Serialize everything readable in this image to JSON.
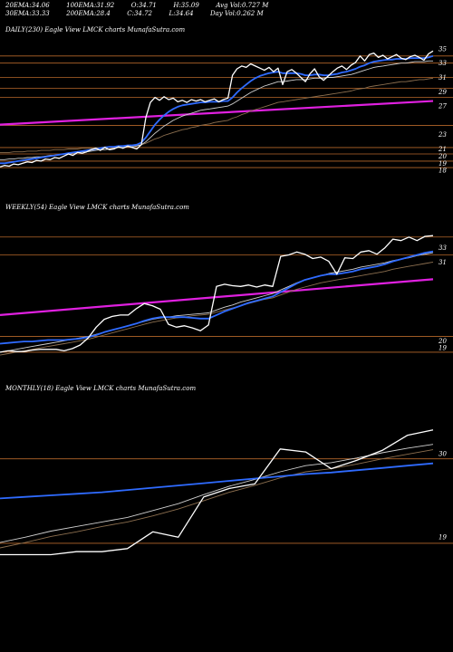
{
  "header": {
    "row1": [
      {
        "label": "20EMA:",
        "value": "34.06"
      },
      {
        "label": "100EMA:",
        "value": "31.92"
      },
      {
        "label": "O:",
        "value": "34.71"
      },
      {
        "label": "H:",
        "value": "35.09"
      },
      {
        "label": "Avg Vol:",
        "value": "0.727  M"
      }
    ],
    "row2": [
      {
        "label": "30EMA:",
        "value": "33.33"
      },
      {
        "label": "200EMA:",
        "value": "28.4"
      },
      {
        "label": "C:",
        "value": "34.72"
      },
      {
        "label": "L:",
        "value": "34.64"
      },
      {
        "label": "Day Vol:",
        "value": "0.262  M"
      }
    ]
  },
  "colors": {
    "background": "#000000",
    "price": "#ffffff",
    "ema_fast": "#2f6bff",
    "ema_slow": "#cfcfcf",
    "ema_long": "#8c6f4f",
    "trend": "#e020e0",
    "level": "#b5672a"
  },
  "chart_data": [
    {
      "type": "line",
      "title": "DAILY(230) Eagle   View  LMCK charts MunafaSutra.com",
      "ylim": [
        16,
        36
      ],
      "y_ticks": [
        {
          "label": "35",
          "value": 35
        },
        {
          "label": "33",
          "value": 33
        },
        {
          "label": "31",
          "value": 31
        },
        {
          "label": "29",
          "value": 29
        },
        {
          "label": "27",
          "value": 27
        },
        {
          "label": "23",
          "value": 23
        },
        {
          "label": "21",
          "value": 21
        },
        {
          "label": "20",
          "value": 20
        },
        {
          "label": "19",
          "value": 19
        },
        {
          "label": "18",
          "value": 18
        }
      ],
      "levels": [
        34.0,
        33.0,
        31.0,
        29.5,
        28.2,
        24.3,
        21.2,
        20.3,
        19.3,
        18.4
      ],
      "trend": [
        [
          0,
          24.4
        ],
        [
          1,
          27.7
        ]
      ],
      "series": [
        {
          "role": "price",
          "values": [
            18.5,
            18.7,
            18.6,
            18.9,
            18.8,
            19.0,
            19.2,
            19.1,
            19.4,
            19.3,
            19.6,
            19.5,
            19.8,
            19.7,
            20.0,
            20.3,
            20.1,
            20.5,
            20.4,
            20.6,
            20.9,
            21.1,
            20.8,
            21.2,
            20.9,
            21.0,
            21.3,
            21.1,
            21.4,
            21.2,
            21.0,
            21.6,
            25.4,
            27.5,
            28.2,
            27.8,
            28.3,
            27.9,
            28.1,
            27.6,
            27.8,
            27.5,
            27.9,
            27.7,
            27.9,
            27.6,
            27.8,
            28.0,
            27.6,
            27.9,
            28.1,
            31.3,
            32.2,
            32.6,
            32.4,
            32.9,
            32.6,
            32.3,
            32.0,
            32.4,
            31.8,
            32.3,
            30.0,
            31.8,
            32.1,
            31.6,
            31.0,
            30.4,
            31.5,
            32.2,
            31.1,
            30.6,
            31.2,
            31.8,
            32.3,
            32.6,
            32.1,
            32.7,
            33.1,
            34.0,
            33.3,
            34.2,
            34.4,
            33.8,
            34.1,
            33.6,
            33.9,
            34.2,
            33.7,
            33.5,
            33.9,
            34.1,
            33.8,
            33.4,
            34.3,
            34.7
          ]
        },
        {
          "role": "ema_fast",
          "values": [
            19.0,
            19.0,
            19.1,
            19.2,
            19.3,
            19.4,
            19.5,
            19.6,
            19.7,
            19.8,
            19.9,
            20.0,
            20.1,
            20.2,
            20.3,
            20.4,
            20.5,
            20.6,
            20.7,
            20.8,
            20.9,
            21.0,
            21.1,
            21.2,
            21.3,
            21.3,
            21.4,
            21.4,
            21.5,
            21.5,
            21.6,
            21.9,
            22.6,
            23.5,
            24.4,
            25.1,
            25.7,
            26.2,
            26.6,
            26.9,
            27.1,
            27.2,
            27.3,
            27.4,
            27.5,
            27.5,
            27.6,
            27.6,
            27.6,
            27.7,
            27.7,
            28.2,
            28.9,
            29.5,
            30.0,
            30.5,
            30.9,
            31.2,
            31.4,
            31.6,
            31.7,
            31.8,
            31.6,
            31.6,
            31.6,
            31.6,
            31.5,
            31.3,
            31.3,
            31.4,
            31.4,
            31.3,
            31.3,
            31.4,
            31.5,
            31.7,
            31.8,
            32.0,
            32.2,
            32.5,
            32.7,
            33.0,
            33.2,
            33.3,
            33.4,
            33.5,
            33.5,
            33.6,
            33.6,
            33.6,
            33.7,
            33.7,
            33.7,
            33.7,
            33.8,
            34.0
          ]
        },
        {
          "role": "ema_slow",
          "values": [
            19.5,
            19.5,
            19.6,
            19.6,
            19.7,
            19.7,
            19.8,
            19.8,
            19.9,
            19.9,
            20.0,
            20.1,
            20.1,
            20.2,
            20.3,
            20.3,
            20.4,
            20.5,
            20.6,
            20.6,
            20.7,
            20.8,
            20.9,
            20.9,
            21.0,
            21.1,
            21.2,
            21.2,
            21.3,
            21.3,
            21.4,
            21.6,
            22.0,
            22.6,
            23.2,
            23.7,
            24.2,
            24.6,
            25.0,
            25.3,
            25.6,
            25.8,
            26.0,
            26.2,
            26.4,
            26.5,
            26.6,
            26.7,
            26.8,
            26.9,
            27.0,
            27.3,
            27.7,
            28.1,
            28.5,
            28.9,
            29.2,
            29.5,
            29.8,
            30.0,
            30.2,
            30.4,
            30.4,
            30.5,
            30.6,
            30.7,
            30.7,
            30.7,
            30.8,
            30.9,
            30.9,
            30.9,
            31.0,
            31.0,
            31.1,
            31.2,
            31.3,
            31.4,
            31.6,
            31.8,
            32.0,
            32.2,
            32.4,
            32.5,
            32.6,
            32.7,
            32.8,
            32.9,
            33.0,
            33.0,
            33.1,
            33.2,
            33.2,
            33.2,
            33.3,
            33.3
          ]
        },
        {
          "role": "ema_long",
          "values": [
            20.5,
            20.5,
            20.5,
            20.6,
            20.6,
            20.6,
            20.7,
            20.7,
            20.7,
            20.8,
            20.8,
            20.8,
            20.9,
            20.9,
            20.9,
            21.0,
            21.0,
            21.0,
            21.1,
            21.1,
            21.1,
            21.2,
            21.2,
            21.3,
            21.3,
            21.3,
            21.4,
            21.4,
            21.5,
            21.5,
            21.5,
            21.6,
            21.8,
            22.1,
            22.4,
            22.6,
            22.9,
            23.1,
            23.3,
            23.5,
            23.7,
            23.8,
            24.0,
            24.1,
            24.3,
            24.4,
            24.5,
            24.7,
            24.8,
            24.9,
            25.0,
            25.3,
            25.5,
            25.8,
            26.0,
            26.3,
            26.5,
            26.7,
            26.9,
            27.1,
            27.3,
            27.5,
            27.6,
            27.7,
            27.8,
            27.9,
            28.0,
            28.1,
            28.2,
            28.3,
            28.4,
            28.5,
            28.6,
            28.7,
            28.8,
            28.9,
            29.0,
            29.1,
            29.3,
            29.4,
            29.5,
            29.7,
            29.8,
            29.9,
            30.0,
            30.1,
            30.2,
            30.3,
            30.4,
            30.4,
            30.5,
            30.6,
            30.7,
            30.7,
            30.8,
            30.9
          ]
        }
      ]
    },
    {
      "type": "line",
      "title": "WEEKLY(54) Eagle   View  LMCK charts MunafaSutra.com",
      "ylim": [
        17,
        37
      ],
      "y_ticks": [
        {
          "label": "33",
          "value": 33
        },
        {
          "label": "31",
          "value": 31
        },
        {
          "label": "20",
          "value": 20
        },
        {
          "label": "19",
          "value": 19
        }
      ],
      "levels": [
        34.5,
        32.0,
        20.6,
        18.4
      ],
      "trend": [
        [
          0,
          23.6
        ],
        [
          1,
          28.6
        ]
      ],
      "series": [
        {
          "role": "price",
          "values": [
            18.4,
            18.6,
            18.5,
            18.5,
            18.7,
            18.8,
            18.8,
            18.8,
            18.6,
            18.9,
            19.4,
            20.4,
            21.9,
            23.0,
            23.4,
            23.6,
            23.6,
            24.5,
            25.2,
            24.9,
            24.4,
            22.3,
            21.9,
            22.1,
            21.8,
            21.4,
            22.2,
            27.6,
            27.9,
            27.7,
            27.6,
            27.8,
            27.5,
            27.8,
            27.6,
            31.8,
            32.0,
            32.4,
            32.1,
            31.5,
            31.7,
            31.1,
            29.3,
            31.6,
            31.5,
            32.4,
            32.6,
            32.1,
            33.0,
            34.2,
            34.0,
            34.5,
            34.0,
            34.6,
            34.7
          ]
        },
        {
          "role": "ema_fast",
          "values": [
            19.6,
            19.7,
            19.8,
            19.9,
            19.9,
            20.0,
            20.1,
            20.1,
            20.1,
            20.2,
            20.3,
            20.5,
            20.8,
            21.2,
            21.5,
            21.8,
            22.1,
            22.4,
            22.8,
            23.1,
            23.3,
            23.3,
            23.3,
            23.3,
            23.2,
            23.1,
            23.1,
            23.6,
            24.1,
            24.5,
            24.9,
            25.3,
            25.6,
            25.9,
            26.2,
            26.8,
            27.4,
            28.0,
            28.5,
            28.8,
            29.1,
            29.3,
            29.3,
            29.5,
            29.7,
            30.0,
            30.2,
            30.4,
            30.7,
            31.1,
            31.4,
            31.7,
            32.0,
            32.3,
            32.5
          ]
        },
        {
          "role": "ema_slow",
          "values": [
            18.4,
            18.6,
            18.8,
            19.0,
            19.2,
            19.4,
            19.6,
            19.8,
            20.0,
            20.2,
            20.4,
            20.6,
            20.9,
            21.2,
            21.5,
            21.8,
            22.1,
            22.4,
            22.7,
            23.0,
            23.2,
            23.3,
            23.5,
            23.6,
            23.7,
            23.8,
            23.9,
            24.3,
            24.7,
            25.0,
            25.4,
            25.7,
            26.0,
            26.3,
            26.6,
            27.1,
            27.6,
            28.1,
            28.5,
            28.8,
            29.1,
            29.4,
            29.6,
            29.8,
            30.0,
            30.3,
            30.5,
            30.7,
            30.9,
            31.2,
            31.4,
            31.6,
            31.9,
            32.1,
            32.3
          ]
        },
        {
          "role": "ema_long",
          "values": [
            18.0,
            18.2,
            18.4,
            18.6,
            18.8,
            19.0,
            19.2,
            19.4,
            19.6,
            19.8,
            20.0,
            20.2,
            20.5,
            20.8,
            21.1,
            21.4,
            21.7,
            22.0,
            22.3,
            22.6,
            22.8,
            23.0,
            23.2,
            23.3,
            23.5,
            23.6,
            23.7,
            24.0,
            24.3,
            24.6,
            24.9,
            25.2,
            25.5,
            25.8,
            26.0,
            26.4,
            26.8,
            27.2,
            27.5,
            27.8,
            28.1,
            28.3,
            28.5,
            28.7,
            28.9,
            29.1,
            29.3,
            29.5,
            29.7,
            30.0,
            30.2,
            30.4,
            30.6,
            30.8,
            31.0
          ]
        }
      ]
    },
    {
      "type": "line",
      "title": "MONTHLY(18) Eagle   View  LMCK charts MunafaSutra.com",
      "ylim": [
        17,
        37
      ],
      "y_ticks": [
        {
          "label": "30",
          "value": 30
        },
        {
          "label": "19",
          "value": 19
        }
      ],
      "levels": [
        29.3,
        18.2
      ],
      "series": [
        {
          "role": "price",
          "values": [
            16.7,
            16.7,
            16.7,
            17.1,
            17.1,
            17.5,
            19.7,
            19.0,
            24.3,
            25.4,
            26.0,
            30.6,
            30.2,
            28.0,
            29.1,
            30.4,
            32.4,
            33.1
          ]
        },
        {
          "role": "ema_fast",
          "values": [
            24.1,
            24.3,
            24.5,
            24.7,
            24.9,
            25.2,
            25.5,
            25.8,
            26.1,
            26.4,
            26.7,
            27.0,
            27.3,
            27.5,
            27.8,
            28.1,
            28.4,
            28.7
          ]
        },
        {
          "role": "ema_slow",
          "values": [
            18.3,
            19.0,
            19.8,
            20.4,
            21.0,
            21.6,
            22.5,
            23.4,
            24.6,
            25.7,
            26.6,
            27.6,
            28.4,
            28.8,
            29.4,
            30.1,
            30.7,
            31.2
          ]
        },
        {
          "role": "ema_long",
          "values": [
            17.6,
            18.3,
            19.1,
            19.7,
            20.4,
            21.0,
            21.8,
            22.7,
            23.8,
            24.9,
            25.8,
            26.8,
            27.6,
            28.0,
            28.6,
            29.3,
            29.9,
            30.5
          ]
        }
      ]
    }
  ]
}
